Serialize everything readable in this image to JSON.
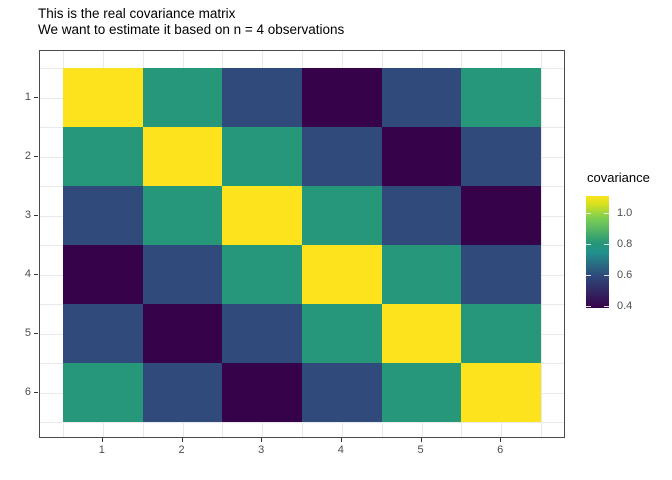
{
  "title": "This is the real covariance matrix",
  "subtitle": "We want to estimate it based on n = 4 observations",
  "chart_data": {
    "type": "heatmap",
    "title": "This is the real covariance matrix",
    "subtitle": "We want to estimate it based on n = 4 observations",
    "x_categories": [
      "1",
      "2",
      "3",
      "4",
      "5",
      "6"
    ],
    "y_categories": [
      "1",
      "2",
      "3",
      "4",
      "5",
      "6"
    ],
    "y_order": "1 at top (reversed axis)",
    "matrix": [
      [
        1.1,
        0.8,
        0.6,
        0.4,
        0.6,
        0.8
      ],
      [
        0.8,
        1.1,
        0.8,
        0.6,
        0.4,
        0.6
      ],
      [
        0.6,
        0.8,
        1.1,
        0.8,
        0.6,
        0.4
      ],
      [
        0.4,
        0.6,
        0.8,
        1.1,
        0.8,
        0.6
      ],
      [
        0.6,
        0.4,
        0.6,
        0.8,
        1.1,
        0.8
      ],
      [
        0.8,
        0.6,
        0.4,
        0.6,
        0.8,
        1.1
      ]
    ],
    "value_colors": {
      "1.1": "#FCE31E",
      "0.8": "#269778",
      "0.6": "#2F4A7B",
      "0.4": "#36024A"
    },
    "colormap": "viridis",
    "grid": true,
    "legend_position": "right",
    "legend": {
      "title": "covariance",
      "tick_labels": [
        "1.0",
        "0.8",
        "0.6",
        "0.4"
      ],
      "tick_values": [
        1.0,
        0.8,
        0.6,
        0.4
      ],
      "bar_range": [
        0.39,
        1.11
      ],
      "gradient_stops_bottom_to_top": [
        {
          "frac": 0.0,
          "color": "#36024A"
        },
        {
          "frac": 0.29,
          "color": "#2F4A7B"
        },
        {
          "frac": 0.5,
          "color": "#21918C"
        },
        {
          "frac": 0.58,
          "color": "#269778"
        },
        {
          "frac": 0.8,
          "color": "#7CCE52"
        },
        {
          "frac": 0.93,
          "color": "#D8E21E"
        },
        {
          "frac": 1.0,
          "color": "#FCE31E"
        }
      ]
    }
  },
  "axes": {
    "x_tick_labels": [
      "1",
      "2",
      "3",
      "4",
      "5",
      "6"
    ],
    "y_tick_labels": [
      "1",
      "2",
      "3",
      "4",
      "5",
      "6"
    ]
  },
  "colors": {
    "panel_border": "#4a4a4a",
    "gridline": "#e9e9e9",
    "tick_mark": "#333333",
    "axis_text": "#4d4d4d",
    "background": "#ffffff"
  }
}
